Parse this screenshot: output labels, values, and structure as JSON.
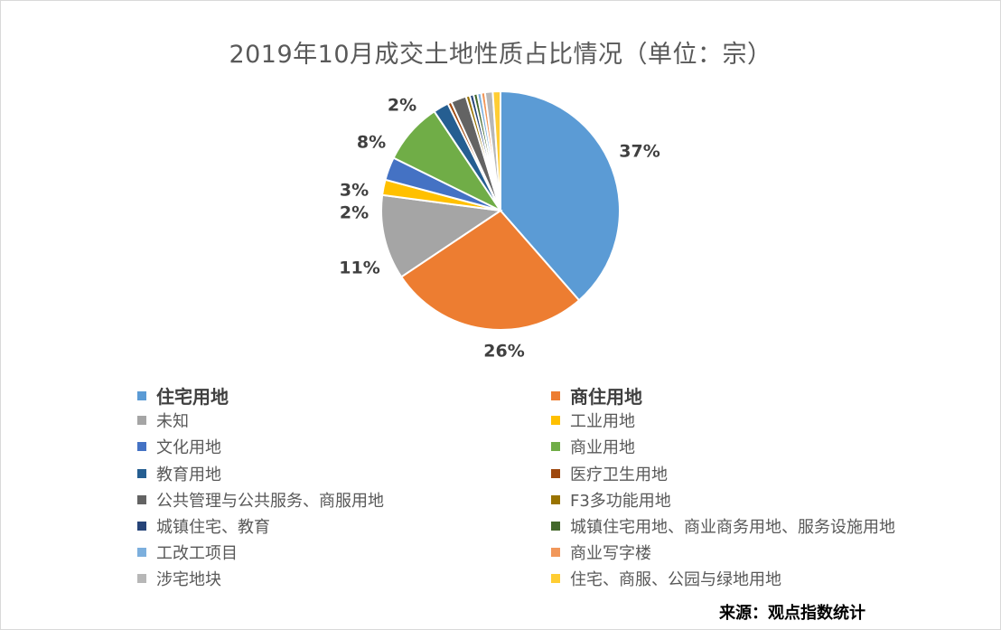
{
  "chart_data": {
    "type": "pie",
    "title": "2019年10月成交土地性质占比情况（单位：宗）",
    "source": "来源：观点指数统计",
    "series": [
      {
        "name": "住宅用地",
        "value": 37,
        "color": "#5B9BD5",
        "label": "37%"
      },
      {
        "name": "商住用地",
        "value": 26,
        "color": "#ED7D31",
        "label": "26%"
      },
      {
        "name": "未知",
        "value": 11,
        "color": "#A5A5A5",
        "label": "11%"
      },
      {
        "name": "工业用地",
        "value": 2,
        "color": "#FFC000",
        "label": "2%"
      },
      {
        "name": "文化用地",
        "value": 3,
        "color": "#4472C4",
        "label": "3%"
      },
      {
        "name": "商业用地",
        "value": 8,
        "color": "#70AD47",
        "label": "8%"
      },
      {
        "name": "教育用地",
        "value": 2,
        "color": "#255E91",
        "label": ""
      },
      {
        "name": "医疗卫生用地",
        "value": 0.5,
        "color": "#9E480E",
        "label": ""
      },
      {
        "name": "公共管理与公共服务、商服用地",
        "value": 2,
        "color": "#636363",
        "label": "2%"
      },
      {
        "name": "F3多功能用地",
        "value": 0.5,
        "color": "#997300",
        "label": ""
      },
      {
        "name": "城镇住宅、教育",
        "value": 0.5,
        "color": "#264478",
        "label": ""
      },
      {
        "name": "城镇住宅用地、商业商务用地、服务设施用地",
        "value": 0.5,
        "color": "#43682B",
        "label": ""
      },
      {
        "name": "工改工项目",
        "value": 0.5,
        "color": "#7CAFDD",
        "label": ""
      },
      {
        "name": "商业写字楼",
        "value": 0.5,
        "color": "#F1975A",
        "label": ""
      },
      {
        "name": "涉宅地块",
        "value": 1,
        "color": "#B7B7B7",
        "label": ""
      },
      {
        "name": "住宅、商服、公园与绿地用地",
        "value": 1,
        "color": "#FFCD33",
        "label": ""
      }
    ],
    "legend": "bottom",
    "label_color": "#404040",
    "bold_legend_entries": [
      "住宅用地",
      "商住用地"
    ]
  }
}
